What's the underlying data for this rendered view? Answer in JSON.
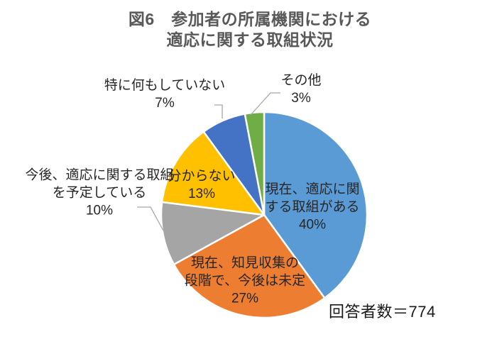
{
  "figure": {
    "title": "図6　参加者の所属機関における\n適応に関する取組状況",
    "respondents_label": "回答者数＝774"
  },
  "colors": {
    "title_text": "#595959",
    "label_text": "#262626",
    "leader_line": "#A6A6A6",
    "background": "#FFFFFF",
    "slice_border": "#FFFFFF"
  },
  "chart_data": {
    "type": "pie",
    "title": "図6 参加者の所属機関における適応に関する取組状況",
    "start_angle_deg": 0,
    "direction": "clockwise",
    "legend_position": "none",
    "respondents_total": 774,
    "categories": [
      "現在、適応に関する取組がある",
      "現在、知見収集の段階で、今後は未定",
      "今後、適応に関する取組を予定している",
      "分からない",
      "特に何もしていない",
      "その他"
    ],
    "values": [
      40,
      27,
      10,
      13,
      7,
      3
    ],
    "slices": [
      {
        "label": "現在、適応に関する取組がある",
        "percent": 40,
        "color": "#5B9BD5",
        "display": "現在、適応に関\nする取組がある\n40%",
        "label_placement": "inside"
      },
      {
        "label": "現在、知見収集の段階で、今後は未定",
        "percent": 27,
        "color": "#ED7D31",
        "display": "現在、知見収集の\n段階で、今後は未定\n27%",
        "label_placement": "inside"
      },
      {
        "label": "今後、適応に関する取組を予定している",
        "percent": 10,
        "color": "#A5A5A5",
        "display": "今後、適応に関する取組\nを予定している\n10%",
        "label_placement": "outside"
      },
      {
        "label": "分からない",
        "percent": 13,
        "color": "#FFC000",
        "display": "分からない\n13%",
        "label_placement": "inside"
      },
      {
        "label": "特に何もしていない",
        "percent": 7,
        "color": "#4472C4",
        "display": "特に何もしていない\n7%",
        "label_placement": "outside"
      },
      {
        "label": "その他",
        "percent": 3,
        "color": "#70AD47",
        "display": "その他\n3%",
        "label_placement": "outside"
      }
    ]
  }
}
